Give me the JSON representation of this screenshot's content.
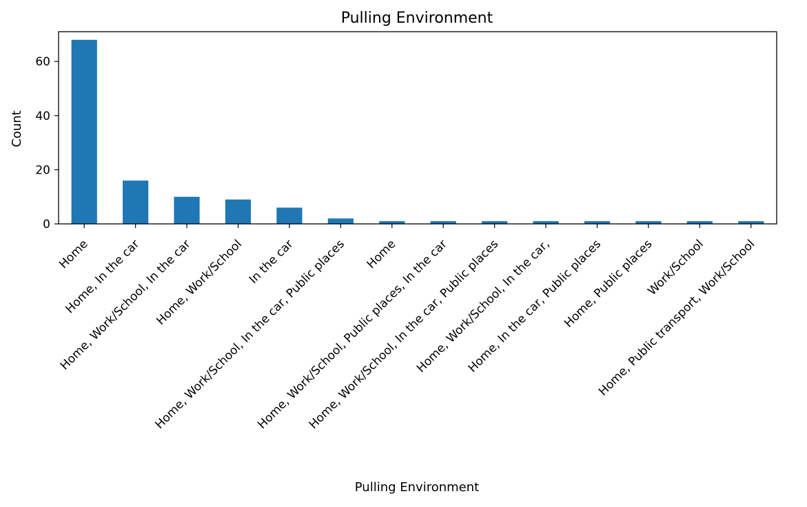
{
  "chart_data": {
    "type": "bar",
    "title": "Pulling Environment",
    "xlabel": "Pulling Environment",
    "ylabel": "Count",
    "ylim": [
      0,
      71
    ],
    "yticks": [
      0,
      20,
      40,
      60
    ],
    "grid": false,
    "legend": "none",
    "bar_color": "#1f77b4",
    "categories": [
      "Home",
      "Home, In the car",
      "Home, Work/School, In the car",
      "Home, Work/School",
      "In the car",
      "Home, Work/School, In the car, Public places",
      "Home",
      "Home, Work/School, Public places, In the car",
      "Home, Work/School, In the car, Public places",
      "Home, Work/School, In the car,",
      "Home, In the car, Public places",
      "Home, Public places",
      "Work/School",
      "Home, Public transport, Work/School"
    ],
    "values": [
      68,
      16,
      10,
      9,
      6,
      2,
      1,
      1,
      1,
      1,
      1,
      1,
      1,
      1
    ]
  }
}
